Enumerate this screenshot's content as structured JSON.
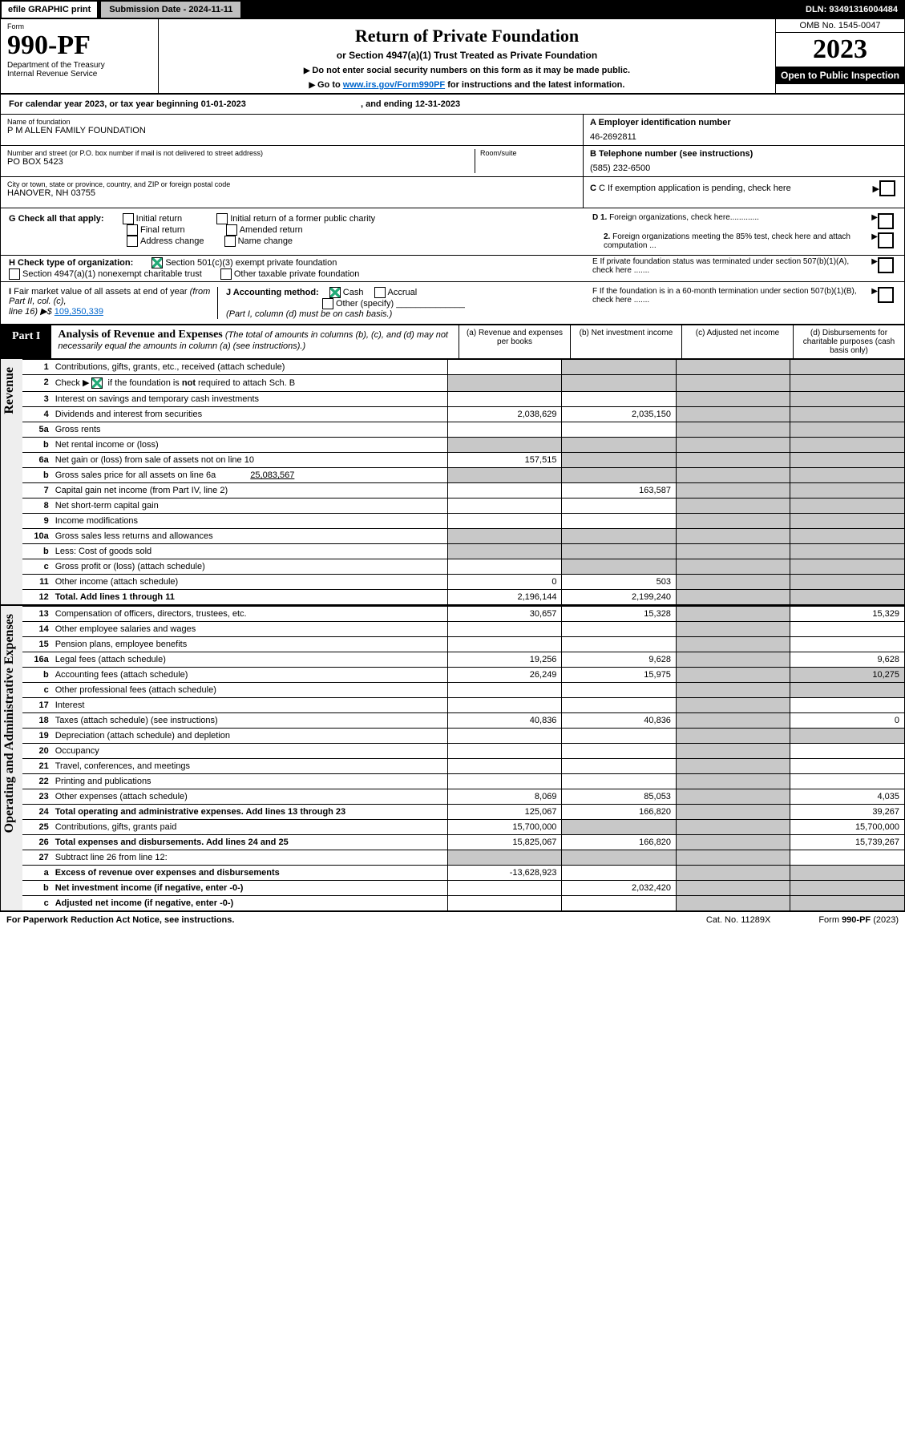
{
  "top": {
    "efile": "efile GRAPHIC print",
    "subdate": "Submission Date - 2024-11-11",
    "dln": "DLN: 93491316004484"
  },
  "hdr": {
    "form_word": "Form",
    "form_no": "990-PF",
    "dept": "Department of the Treasury",
    "irs": "Internal Revenue Service",
    "title": "Return of Private Foundation",
    "sub": "or Section 4947(a)(1) Trust Treated as Private Foundation",
    "note1": "Do not enter social security numbers on this form as it may be made public.",
    "note2_pre": "Go to ",
    "note2_link": "www.irs.gov/Form990PF",
    "note2_post": " for instructions and the latest information.",
    "omb": "OMB No. 1545-0047",
    "year": "2023",
    "open": "Open to Public Inspection"
  },
  "cal": {
    "text_pre": "For calendar year 2023, or tax year beginning 01-01-2023",
    "text_mid": ", and ending 12-31-2023"
  },
  "entity": {
    "name_lbl": "Name of foundation",
    "name": "P M ALLEN FAMILY FOUNDATION",
    "addr_lbl": "Number and street (or P.O. box number if mail is not delivered to street address)",
    "room_lbl": "Room/suite",
    "addr": "PO BOX 5423",
    "city_lbl": "City or town, state or province, country, and ZIP or foreign postal code",
    "city": "HANOVER, NH  03755",
    "a_lbl": "A Employer identification number",
    "a_val": "46-2692811",
    "b_lbl": "B Telephone number (see instructions)",
    "b_val": "(585) 232-6500",
    "c_lbl": "C If exemption application is pending, check here"
  },
  "g": {
    "lbl": "G Check all that apply:",
    "o1": "Initial return",
    "o2": "Final return",
    "o3": "Address change",
    "o4": "Initial return of a former public charity",
    "o5": "Amended return",
    "o6": "Name change"
  },
  "d": {
    "d1": "D 1. Foreign organizations, check here.............",
    "d2": "2. Foreign organizations meeting the 85% test, check here and attach computation ..."
  },
  "h": {
    "lbl": "H Check type of organization:",
    "o1": "Section 501(c)(3) exempt private foundation",
    "o2": "Section 4947(a)(1) nonexempt charitable trust",
    "o3": "Other taxable private foundation"
  },
  "e": {
    "lbl": "E  If private foundation status was terminated under section 507(b)(1)(A), check here ......."
  },
  "i": {
    "lbl": "I Fair market value of all assets at end of year (from Part II, col. (c),",
    "line": "line 16) ▶$",
    "val": "109,350,339"
  },
  "j": {
    "lbl": "J Accounting method:",
    "o1": "Cash",
    "o2": "Accrual",
    "o3": "Other (specify)",
    "note": "(Part I, column (d) must be on cash basis.)"
  },
  "f": {
    "lbl": "F  If the foundation is in a 60-month termination under section 507(b)(1)(B), check here ......."
  },
  "part1": {
    "tag": "Part I",
    "title": "Analysis of Revenue and Expenses",
    "sub": "(The total of amounts in columns (b), (c), and (d) may not necessarily equal the amounts in column (a) (see instructions).)",
    "cols": {
      "a": "(a)   Revenue and expenses per books",
      "b": "(b)   Net investment income",
      "c": "(c)   Adjusted net income",
      "d": "(d)   Disbursements for charitable purposes (cash basis only)"
    }
  },
  "rev_lbl": "Revenue",
  "exp_lbl": "Operating and Administrative Expenses",
  "rows": [
    {
      "n": "1",
      "d": "Contributions, gifts, grants, etc., received (attach schedule)"
    },
    {
      "n": "2",
      "d": "Check ▶ [✓] if the foundation is not required to attach Sch. B",
      "d_html": true
    },
    {
      "n": "3",
      "d": "Interest on savings and temporary cash investments"
    },
    {
      "n": "4",
      "d": "Dividends and interest from securities",
      "a": "2,038,629",
      "b": "2,035,150"
    },
    {
      "n": "5a",
      "d": "Gross rents"
    },
    {
      "n": "b",
      "d": "Net rental income or (loss)"
    },
    {
      "n": "6a",
      "d": "Net gain or (loss) from sale of assets not on line 10",
      "a": "157,515"
    },
    {
      "n": "b",
      "d": "Gross sales price for all assets on line 6a",
      "inline": "25,083,567"
    },
    {
      "n": "7",
      "d": "Capital gain net income (from Part IV, line 2)",
      "b": "163,587"
    },
    {
      "n": "8",
      "d": "Net short-term capital gain"
    },
    {
      "n": "9",
      "d": "Income modifications"
    },
    {
      "n": "10a",
      "d": "Gross sales less returns and allowances"
    },
    {
      "n": "b",
      "d": "Less: Cost of goods sold"
    },
    {
      "n": "c",
      "d": "Gross profit or (loss) (attach schedule)"
    },
    {
      "n": "11",
      "d": "Other income (attach schedule)",
      "a": "0",
      "b": "503"
    },
    {
      "n": "12",
      "d": "Total. Add lines 1 through 11",
      "bold": true,
      "a": "2,196,144",
      "b": "2,199,240"
    }
  ],
  "exp_rows": [
    {
      "n": "13",
      "d": "Compensation of officers, directors, trustees, etc.",
      "a": "30,657",
      "b": "15,328",
      "dd": "15,329"
    },
    {
      "n": "14",
      "d": "Other employee salaries and wages"
    },
    {
      "n": "15",
      "d": "Pension plans, employee benefits"
    },
    {
      "n": "16a",
      "d": "Legal fees (attach schedule)",
      "a": "19,256",
      "b": "9,628",
      "dd": "9,628"
    },
    {
      "n": "b",
      "d": "Accounting fees (attach schedule)",
      "a": "26,249",
      "b": "15,975",
      "dd": "10,275"
    },
    {
      "n": "c",
      "d": "Other professional fees (attach schedule)"
    },
    {
      "n": "17",
      "d": "Interest"
    },
    {
      "n": "18",
      "d": "Taxes (attach schedule) (see instructions)",
      "a": "40,836",
      "b": "40,836",
      "dd": "0"
    },
    {
      "n": "19",
      "d": "Depreciation (attach schedule) and depletion"
    },
    {
      "n": "20",
      "d": "Occupancy"
    },
    {
      "n": "21",
      "d": "Travel, conferences, and meetings"
    },
    {
      "n": "22",
      "d": "Printing and publications"
    },
    {
      "n": "23",
      "d": "Other expenses (attach schedule)",
      "a": "8,069",
      "b": "85,053",
      "dd": "4,035"
    },
    {
      "n": "24",
      "d": "Total operating and administrative expenses. Add lines 13 through 23",
      "bold": true,
      "a": "125,067",
      "b": "166,820",
      "dd": "39,267"
    },
    {
      "n": "25",
      "d": "Contributions, gifts, grants paid",
      "a": "15,700,000",
      "dd": "15,700,000"
    },
    {
      "n": "26",
      "d": "Total expenses and disbursements. Add lines 24 and 25",
      "bold": true,
      "a": "15,825,067",
      "b": "166,820",
      "dd": "15,739,267"
    },
    {
      "n": "27",
      "d": "Subtract line 26 from line 12:"
    },
    {
      "n": "a",
      "d": "Excess of revenue over expenses and disbursements",
      "bold": true,
      "a": "-13,628,923"
    },
    {
      "n": "b",
      "d": "Net investment income (if negative, enter -0-)",
      "bold": true,
      "b": "2,032,420"
    },
    {
      "n": "c",
      "d": "Adjusted net income (if negative, enter -0-)",
      "bold": true
    }
  ],
  "footer": {
    "left": "For Paperwork Reduction Act Notice, see instructions.",
    "mid": "Cat. No. 11289X",
    "right": "Form 990-PF (2023)"
  }
}
